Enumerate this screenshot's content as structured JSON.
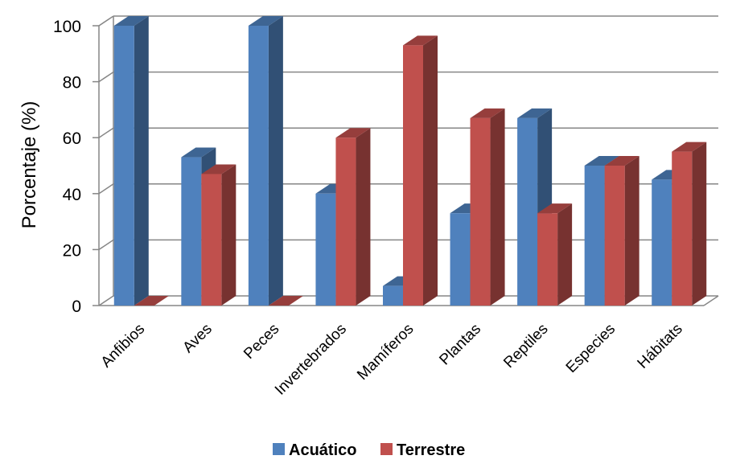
{
  "chart_data": {
    "type": "bar",
    "title": "",
    "xlabel": "",
    "ylabel": "Porcentaje (%)",
    "ylim": [
      0,
      100
    ],
    "yticks": [
      0,
      20,
      40,
      60,
      80,
      100
    ],
    "grid": true,
    "legend": "bottom",
    "categories": [
      "Anfibios",
      "Aves",
      "Peces",
      "Invertebrados",
      "Mamíferos",
      "Plantas",
      "Reptiles",
      "Especies",
      "Hábitats"
    ],
    "series": [
      {
        "name": "Acuático",
        "color": "#4F81BD",
        "values": [
          100,
          53,
          100,
          40,
          7,
          33,
          67,
          50,
          45
        ]
      },
      {
        "name": "Terrestre",
        "color": "#C0504D",
        "values": [
          0,
          47,
          0,
          60,
          93,
          67,
          33,
          50,
          55
        ]
      }
    ]
  }
}
